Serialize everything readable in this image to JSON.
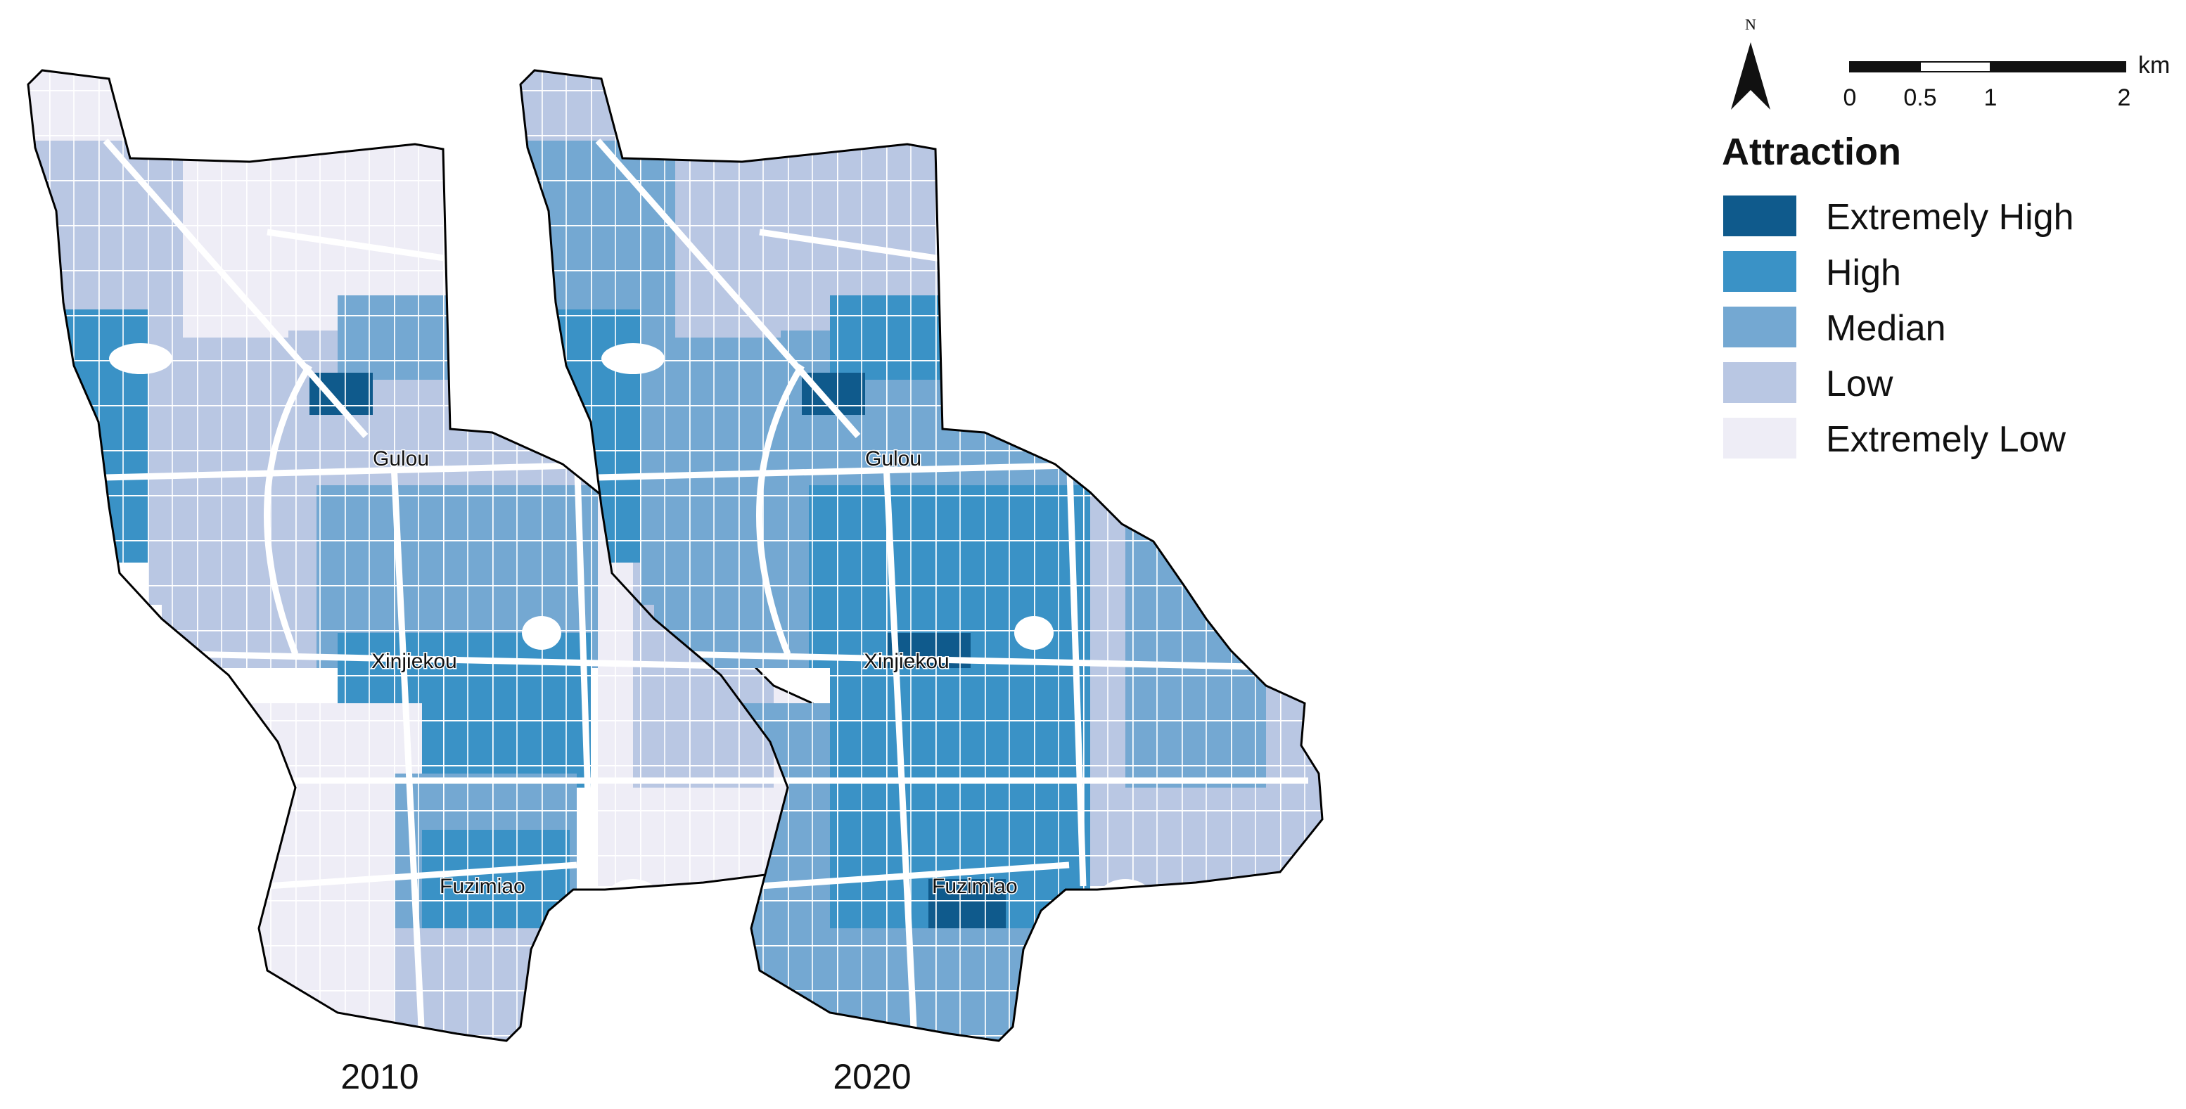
{
  "maps": [
    {
      "year": "2010",
      "labels": {
        "gulou": "Gulou",
        "xinjiekou": "Xinjiekou",
        "fuzimiao": "Fuzimiao"
      },
      "zones": {
        "far_north": "Extremely Low",
        "north_west": "Low",
        "north_centre": "Extremely Low",
        "west_strip": "High",
        "west_mid": "Low",
        "gulou_belt": "Low",
        "gulou_north": "Median",
        "gulou_core": "Extremely High",
        "east_gulou": "Low",
        "centre_west": "Low",
        "centre": "Median",
        "xinjiekou_core": "High",
        "east_outer": "Extremely Low",
        "east_inner": "Low",
        "south_west": "Extremely Low",
        "south_centre": "Median",
        "fuzimiao_core": "High",
        "south_east": "Low"
      }
    },
    {
      "year": "2020",
      "labels": {
        "gulou": "Gulou",
        "xinjiekou": "Xinjiekou",
        "fuzimiao": "Fuzimiao"
      },
      "zones": {
        "far_north": "Low",
        "north_west": "Median",
        "north_centre": "Low",
        "west_strip": "High",
        "west_mid": "Median",
        "gulou_belt": "Median",
        "gulou_north": "High",
        "gulou_core": "Extremely High",
        "east_gulou": "Median",
        "centre_west": "Median",
        "centre": "High",
        "xinjiekou_core": "Extremely High",
        "east_outer": "Low",
        "east_inner": "Median",
        "south_west": "Median",
        "south_centre": "High",
        "fuzimiao_core": "Extremely High",
        "south_east": "Median"
      }
    }
  ],
  "legend": {
    "title": "Attraction",
    "classes": [
      {
        "label": "Extremely High",
        "color": "#0f5a8c"
      },
      {
        "label": "High",
        "color": "#3a92c6"
      },
      {
        "label": "Median",
        "color": "#74a8d2"
      },
      {
        "label": "Low",
        "color": "#b9c7e3"
      },
      {
        "label": "Extremely Low",
        "color": "#eeedf6"
      }
    ]
  },
  "north_arrow": {
    "label": "N"
  },
  "scale_bar": {
    "unit": "km",
    "ticks": [
      "0",
      "0.5",
      "1",
      "2"
    ]
  },
  "colors": {
    "road": "#ffffff",
    "boundary": "#000000"
  }
}
